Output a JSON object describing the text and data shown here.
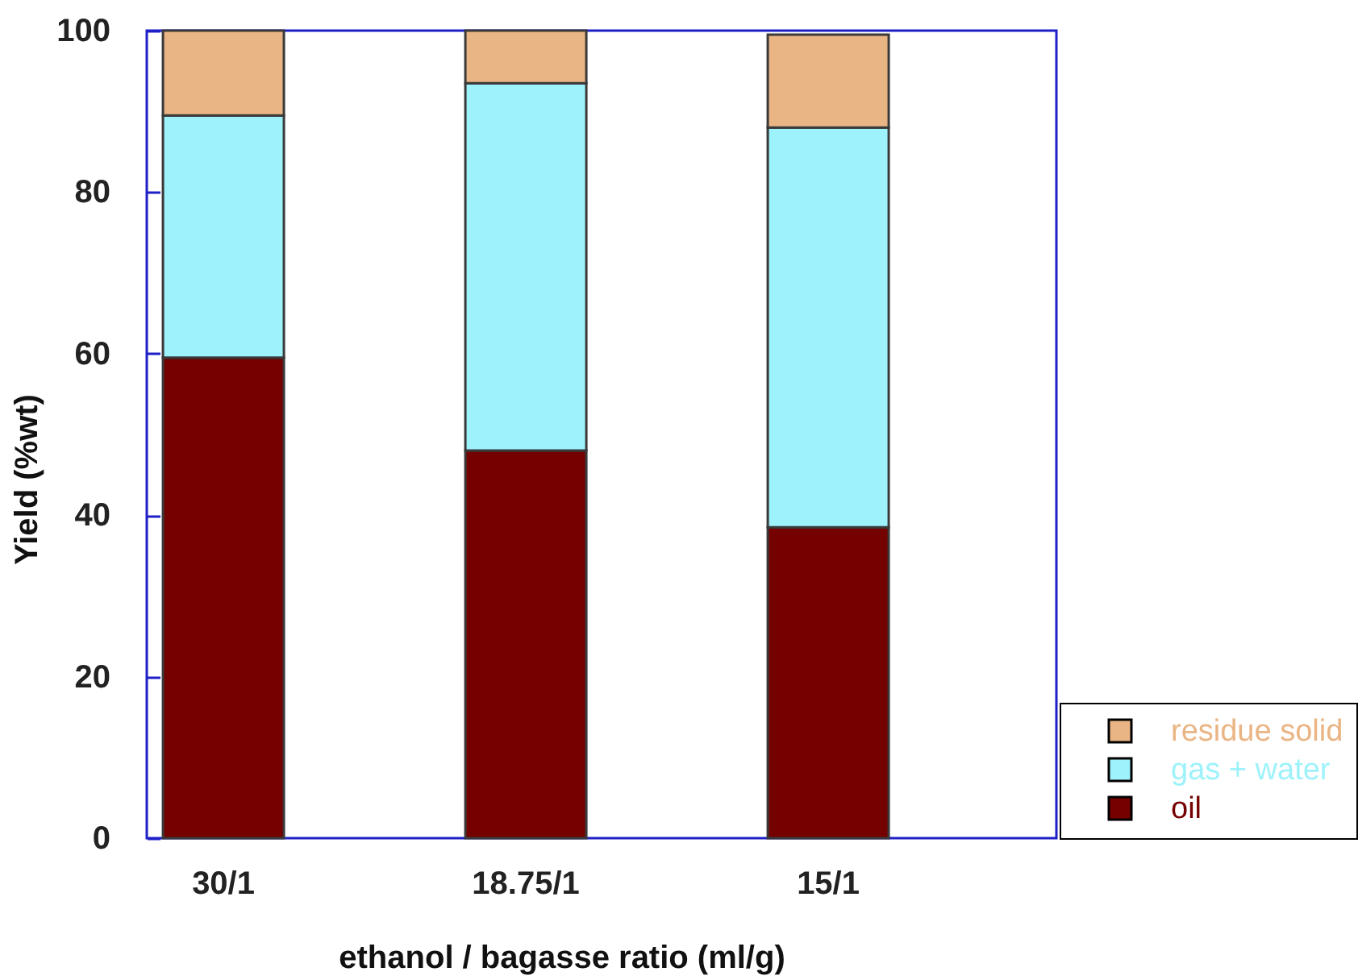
{
  "chart_data": {
    "type": "bar",
    "stacked": true,
    "xlabel": "ethanol / bagasse ratio (ml/g)",
    "ylabel": "Yield (%wt)",
    "categories": [
      "30/1",
      "18.75/1",
      "15/1"
    ],
    "series": [
      {
        "name": "oil",
        "color": "#750000",
        "values": [
          59.5,
          48,
          38.5
        ]
      },
      {
        "name": "gas + water",
        "color": "#9ef2fb",
        "values": [
          30,
          45.5,
          49.5
        ]
      },
      {
        "name": "residue solid",
        "color": "#eab584",
        "values": [
          10.5,
          6.5,
          11.5
        ]
      }
    ],
    "ylim": [
      0,
      100
    ],
    "yticks": [
      0,
      20,
      40,
      60,
      80,
      100
    ],
    "legend": "bottom right"
  }
}
